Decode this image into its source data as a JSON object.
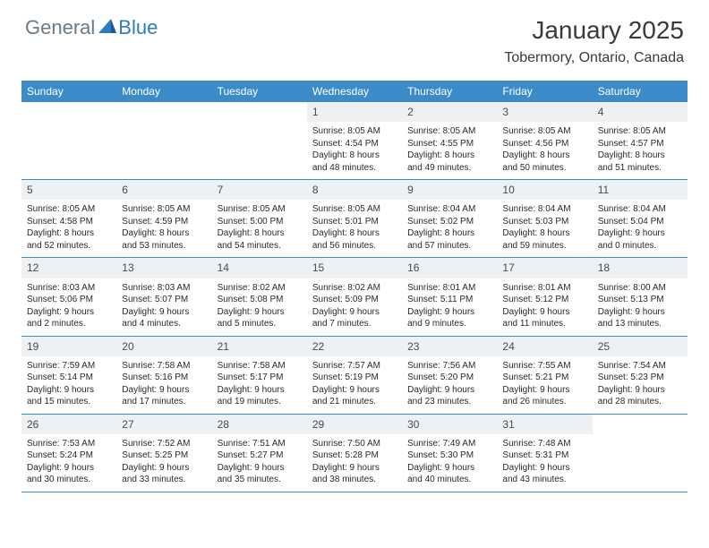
{
  "brand": {
    "part1": "General",
    "part2": "Blue"
  },
  "title": "January 2025",
  "location": "Tobermory, Ontario, Canada",
  "colors": {
    "header_bg": "#3b8bc8",
    "header_text": "#ffffff",
    "daynum_bg": "#eef1f4",
    "row_border": "#3b8bc8",
    "body_text": "#2a2a2a",
    "title_text": "#3a3a3a",
    "logo_gray": "#6b7a85",
    "logo_blue": "#2f7bbf"
  },
  "dow": [
    "Sunday",
    "Monday",
    "Tuesday",
    "Wednesday",
    "Thursday",
    "Friday",
    "Saturday"
  ],
  "weeks": [
    [
      {
        "n": "",
        "sr": "",
        "ss": "",
        "dl": ""
      },
      {
        "n": "",
        "sr": "",
        "ss": "",
        "dl": ""
      },
      {
        "n": "",
        "sr": "",
        "ss": "",
        "dl": ""
      },
      {
        "n": "1",
        "sr": "Sunrise: 8:05 AM",
        "ss": "Sunset: 4:54 PM",
        "dl": "Daylight: 8 hours and 48 minutes."
      },
      {
        "n": "2",
        "sr": "Sunrise: 8:05 AM",
        "ss": "Sunset: 4:55 PM",
        "dl": "Daylight: 8 hours and 49 minutes."
      },
      {
        "n": "3",
        "sr": "Sunrise: 8:05 AM",
        "ss": "Sunset: 4:56 PM",
        "dl": "Daylight: 8 hours and 50 minutes."
      },
      {
        "n": "4",
        "sr": "Sunrise: 8:05 AM",
        "ss": "Sunset: 4:57 PM",
        "dl": "Daylight: 8 hours and 51 minutes."
      }
    ],
    [
      {
        "n": "5",
        "sr": "Sunrise: 8:05 AM",
        "ss": "Sunset: 4:58 PM",
        "dl": "Daylight: 8 hours and 52 minutes."
      },
      {
        "n": "6",
        "sr": "Sunrise: 8:05 AM",
        "ss": "Sunset: 4:59 PM",
        "dl": "Daylight: 8 hours and 53 minutes."
      },
      {
        "n": "7",
        "sr": "Sunrise: 8:05 AM",
        "ss": "Sunset: 5:00 PM",
        "dl": "Daylight: 8 hours and 54 minutes."
      },
      {
        "n": "8",
        "sr": "Sunrise: 8:05 AM",
        "ss": "Sunset: 5:01 PM",
        "dl": "Daylight: 8 hours and 56 minutes."
      },
      {
        "n": "9",
        "sr": "Sunrise: 8:04 AM",
        "ss": "Sunset: 5:02 PM",
        "dl": "Daylight: 8 hours and 57 minutes."
      },
      {
        "n": "10",
        "sr": "Sunrise: 8:04 AM",
        "ss": "Sunset: 5:03 PM",
        "dl": "Daylight: 8 hours and 59 minutes."
      },
      {
        "n": "11",
        "sr": "Sunrise: 8:04 AM",
        "ss": "Sunset: 5:04 PM",
        "dl": "Daylight: 9 hours and 0 minutes."
      }
    ],
    [
      {
        "n": "12",
        "sr": "Sunrise: 8:03 AM",
        "ss": "Sunset: 5:06 PM",
        "dl": "Daylight: 9 hours and 2 minutes."
      },
      {
        "n": "13",
        "sr": "Sunrise: 8:03 AM",
        "ss": "Sunset: 5:07 PM",
        "dl": "Daylight: 9 hours and 4 minutes."
      },
      {
        "n": "14",
        "sr": "Sunrise: 8:02 AM",
        "ss": "Sunset: 5:08 PM",
        "dl": "Daylight: 9 hours and 5 minutes."
      },
      {
        "n": "15",
        "sr": "Sunrise: 8:02 AM",
        "ss": "Sunset: 5:09 PM",
        "dl": "Daylight: 9 hours and 7 minutes."
      },
      {
        "n": "16",
        "sr": "Sunrise: 8:01 AM",
        "ss": "Sunset: 5:11 PM",
        "dl": "Daylight: 9 hours and 9 minutes."
      },
      {
        "n": "17",
        "sr": "Sunrise: 8:01 AM",
        "ss": "Sunset: 5:12 PM",
        "dl": "Daylight: 9 hours and 11 minutes."
      },
      {
        "n": "18",
        "sr": "Sunrise: 8:00 AM",
        "ss": "Sunset: 5:13 PM",
        "dl": "Daylight: 9 hours and 13 minutes."
      }
    ],
    [
      {
        "n": "19",
        "sr": "Sunrise: 7:59 AM",
        "ss": "Sunset: 5:14 PM",
        "dl": "Daylight: 9 hours and 15 minutes."
      },
      {
        "n": "20",
        "sr": "Sunrise: 7:58 AM",
        "ss": "Sunset: 5:16 PM",
        "dl": "Daylight: 9 hours and 17 minutes."
      },
      {
        "n": "21",
        "sr": "Sunrise: 7:58 AM",
        "ss": "Sunset: 5:17 PM",
        "dl": "Daylight: 9 hours and 19 minutes."
      },
      {
        "n": "22",
        "sr": "Sunrise: 7:57 AM",
        "ss": "Sunset: 5:19 PM",
        "dl": "Daylight: 9 hours and 21 minutes."
      },
      {
        "n": "23",
        "sr": "Sunrise: 7:56 AM",
        "ss": "Sunset: 5:20 PM",
        "dl": "Daylight: 9 hours and 23 minutes."
      },
      {
        "n": "24",
        "sr": "Sunrise: 7:55 AM",
        "ss": "Sunset: 5:21 PM",
        "dl": "Daylight: 9 hours and 26 minutes."
      },
      {
        "n": "25",
        "sr": "Sunrise: 7:54 AM",
        "ss": "Sunset: 5:23 PM",
        "dl": "Daylight: 9 hours and 28 minutes."
      }
    ],
    [
      {
        "n": "26",
        "sr": "Sunrise: 7:53 AM",
        "ss": "Sunset: 5:24 PM",
        "dl": "Daylight: 9 hours and 30 minutes."
      },
      {
        "n": "27",
        "sr": "Sunrise: 7:52 AM",
        "ss": "Sunset: 5:25 PM",
        "dl": "Daylight: 9 hours and 33 minutes."
      },
      {
        "n": "28",
        "sr": "Sunrise: 7:51 AM",
        "ss": "Sunset: 5:27 PM",
        "dl": "Daylight: 9 hours and 35 minutes."
      },
      {
        "n": "29",
        "sr": "Sunrise: 7:50 AM",
        "ss": "Sunset: 5:28 PM",
        "dl": "Daylight: 9 hours and 38 minutes."
      },
      {
        "n": "30",
        "sr": "Sunrise: 7:49 AM",
        "ss": "Sunset: 5:30 PM",
        "dl": "Daylight: 9 hours and 40 minutes."
      },
      {
        "n": "31",
        "sr": "Sunrise: 7:48 AM",
        "ss": "Sunset: 5:31 PM",
        "dl": "Daylight: 9 hours and 43 minutes."
      },
      {
        "n": "",
        "sr": "",
        "ss": "",
        "dl": ""
      }
    ]
  ]
}
